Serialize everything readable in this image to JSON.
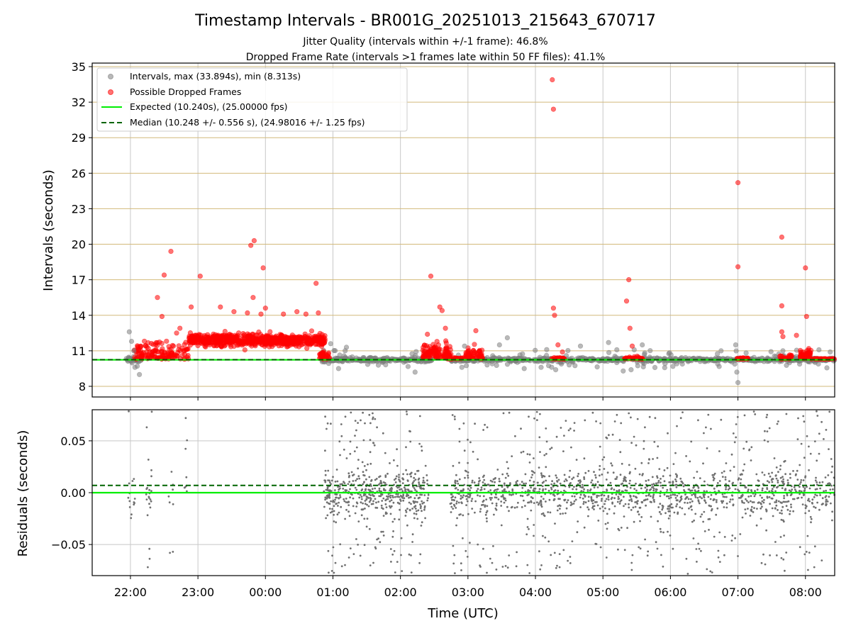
{
  "figure": {
    "title": "Timestamp Intervals - BR001G_20251013_215643_670717",
    "subtitle_1": "Jitter Quality (intervals within +/-1 frame): 46.8%",
    "subtitle_2": "Dropped Frame Rate (intervals >1 frames late within 50 FF files): 41.1%",
    "xlabel": "Time (UTC)"
  },
  "chart_data": [
    {
      "type": "scatter",
      "name": "top-intervals",
      "ylabel": "Intervals (seconds)",
      "xlim": [
        "21:26",
        "08:26"
      ],
      "ylim": [
        7.1,
        35.3
      ],
      "x_ticks": [
        "22:00",
        "23:00",
        "00:00",
        "01:00",
        "02:00",
        "03:00",
        "04:00",
        "05:00",
        "06:00",
        "07:00",
        "08:00"
      ],
      "y_ticks": [
        8,
        11,
        14,
        17,
        20,
        23,
        26,
        29,
        32,
        35
      ],
      "grid": true,
      "legend_position": "top-left",
      "colors": {
        "intervals": "#808080",
        "dropped": "#ff0000",
        "expected": "#00ee00",
        "median": "#006400",
        "hgrid": "#d2b97a",
        "vgrid": "#c8c8c8"
      },
      "legend": [
        {
          "key": "intervals",
          "label": "Intervals, max (33.894s), min (8.313s)"
        },
        {
          "key": "dropped",
          "label": "Possible Dropped Frames"
        },
        {
          "key": "expected",
          "label": "Expected (10.240s), (25.00000 fps)"
        },
        {
          "key": "median",
          "label": "Median (10.248 +/- 0.556 s), (24.98016 +/- 1.25 fps)"
        }
      ],
      "expected_value": 10.24,
      "median_value": 10.248,
      "gray_outliers": [
        {
          "x": "21:59",
          "y": 12.6
        },
        {
          "x": "22:01",
          "y": 11.8
        },
        {
          "x": "22:08",
          "y": 9.0
        },
        {
          "x": "22:04",
          "y": 9.6
        },
        {
          "x": "22:06",
          "y": 9.7
        },
        {
          "x": "22:03",
          "y": 11.0
        },
        {
          "x": "00:58",
          "y": 11.6
        },
        {
          "x": "01:05",
          "y": 9.5
        },
        {
          "x": "01:12",
          "y": 11.3
        },
        {
          "x": "02:13",
          "y": 9.2
        },
        {
          "x": "02:57",
          "y": 11.4
        },
        {
          "x": "03:28",
          "y": 11.5
        },
        {
          "x": "03:35",
          "y": 12.1
        },
        {
          "x": "03:50",
          "y": 9.5
        },
        {
          "x": "04:05",
          "y": 9.6
        },
        {
          "x": "04:10",
          "y": 11.1
        },
        {
          "x": "04:18",
          "y": 9.4
        },
        {
          "x": "04:40",
          "y": 11.4
        },
        {
          "x": "05:05",
          "y": 11.7
        },
        {
          "x": "05:18",
          "y": 9.3
        },
        {
          "x": "05:25",
          "y": 9.4
        },
        {
          "x": "05:35",
          "y": 11.5
        },
        {
          "x": "06:45",
          "y": 11.0
        },
        {
          "x": "06:58",
          "y": 11.5
        },
        {
          "x": "06:59",
          "y": 9.2
        },
        {
          "x": "07:00",
          "y": 8.313
        },
        {
          "x": "07:40",
          "y": 11.0
        },
        {
          "x": "08:22",
          "y": 10.9
        }
      ],
      "red_outliers": [
        {
          "x": "22:24",
          "y": 15.5
        },
        {
          "x": "22:30",
          "y": 17.4
        },
        {
          "x": "22:36",
          "y": 19.4
        },
        {
          "x": "22:28",
          "y": 13.9
        },
        {
          "x": "22:41",
          "y": 12.5
        },
        {
          "x": "22:44",
          "y": 12.9
        },
        {
          "x": "23:02",
          "y": 17.3
        },
        {
          "x": "22:54",
          "y": 14.7
        },
        {
          "x": "23:20",
          "y": 14.7
        },
        {
          "x": "23:32",
          "y": 14.3
        },
        {
          "x": "23:44",
          "y": 14.2
        },
        {
          "x": "23:47",
          "y": 19.9
        },
        {
          "x": "23:50",
          "y": 20.3
        },
        {
          "x": "23:49",
          "y": 15.5
        },
        {
          "x": "23:58",
          "y": 18.0
        },
        {
          "x": "23:56",
          "y": 14.1
        },
        {
          "x": "00:00",
          "y": 14.6
        },
        {
          "x": "00:16",
          "y": 14.1
        },
        {
          "x": "00:28",
          "y": 14.3
        },
        {
          "x": "00:36",
          "y": 14.1
        },
        {
          "x": "00:45",
          "y": 16.7
        },
        {
          "x": "00:47",
          "y": 14.2
        },
        {
          "x": "02:27",
          "y": 17.3
        },
        {
          "x": "02:35",
          "y": 14.7
        },
        {
          "x": "02:37",
          "y": 14.4
        },
        {
          "x": "02:40",
          "y": 12.9
        },
        {
          "x": "02:24",
          "y": 12.4
        },
        {
          "x": "03:07",
          "y": 12.7
        },
        {
          "x": "04:15",
          "y": 33.894
        },
        {
          "x": "04:16",
          "y": 31.4
        },
        {
          "x": "04:16",
          "y": 14.6
        },
        {
          "x": "04:17",
          "y": 14.0
        },
        {
          "x": "04:20",
          "y": 11.5
        },
        {
          "x": "04:24",
          "y": 10.9
        },
        {
          "x": "05:23",
          "y": 17.0
        },
        {
          "x": "05:21",
          "y": 15.2
        },
        {
          "x": "05:24",
          "y": 12.9
        },
        {
          "x": "05:26",
          "y": 11.4
        },
        {
          "x": "07:00",
          "y": 25.2
        },
        {
          "x": "07:00",
          "y": 18.1
        },
        {
          "x": "07:39",
          "y": 20.6
        },
        {
          "x": "07:39",
          "y": 14.8
        },
        {
          "x": "07:39",
          "y": 12.6
        },
        {
          "x": "07:40",
          "y": 12.2
        },
        {
          "x": "07:52",
          "y": 12.3
        },
        {
          "x": "08:00",
          "y": 18.0
        },
        {
          "x": "08:01",
          "y": 13.9
        }
      ]
    },
    {
      "type": "scatter",
      "name": "bottom-residuals",
      "ylabel": "Residuals (seconds)",
      "xlim": [
        "21:26",
        "08:26"
      ],
      "ylim": [
        -0.08,
        0.08
      ],
      "y_ticks": [
        "−0.05",
        "0.00",
        "0.05"
      ],
      "y_tick_values": [
        -0.05,
        0.0,
        0.05
      ],
      "grid": true,
      "colors": {
        "residuals": "#707070",
        "expected": "#00ee00",
        "median": "#006400",
        "grid": "#c8c8c8"
      },
      "expected_value": 0.0,
      "median_value": 0.007,
      "density_segments": [
        {
          "start": "21:58",
          "end": "22:04",
          "n": 14
        },
        {
          "start": "22:14",
          "end": "22:19",
          "n": 22
        },
        {
          "start": "22:34",
          "end": "22:38",
          "n": 8
        },
        {
          "start": "22:47",
          "end": "22:51",
          "n": 8
        },
        {
          "start": "00:52",
          "end": "02:25",
          "n": 560
        },
        {
          "start": "02:44",
          "end": "08:26",
          "n": 1450
        }
      ]
    }
  ]
}
